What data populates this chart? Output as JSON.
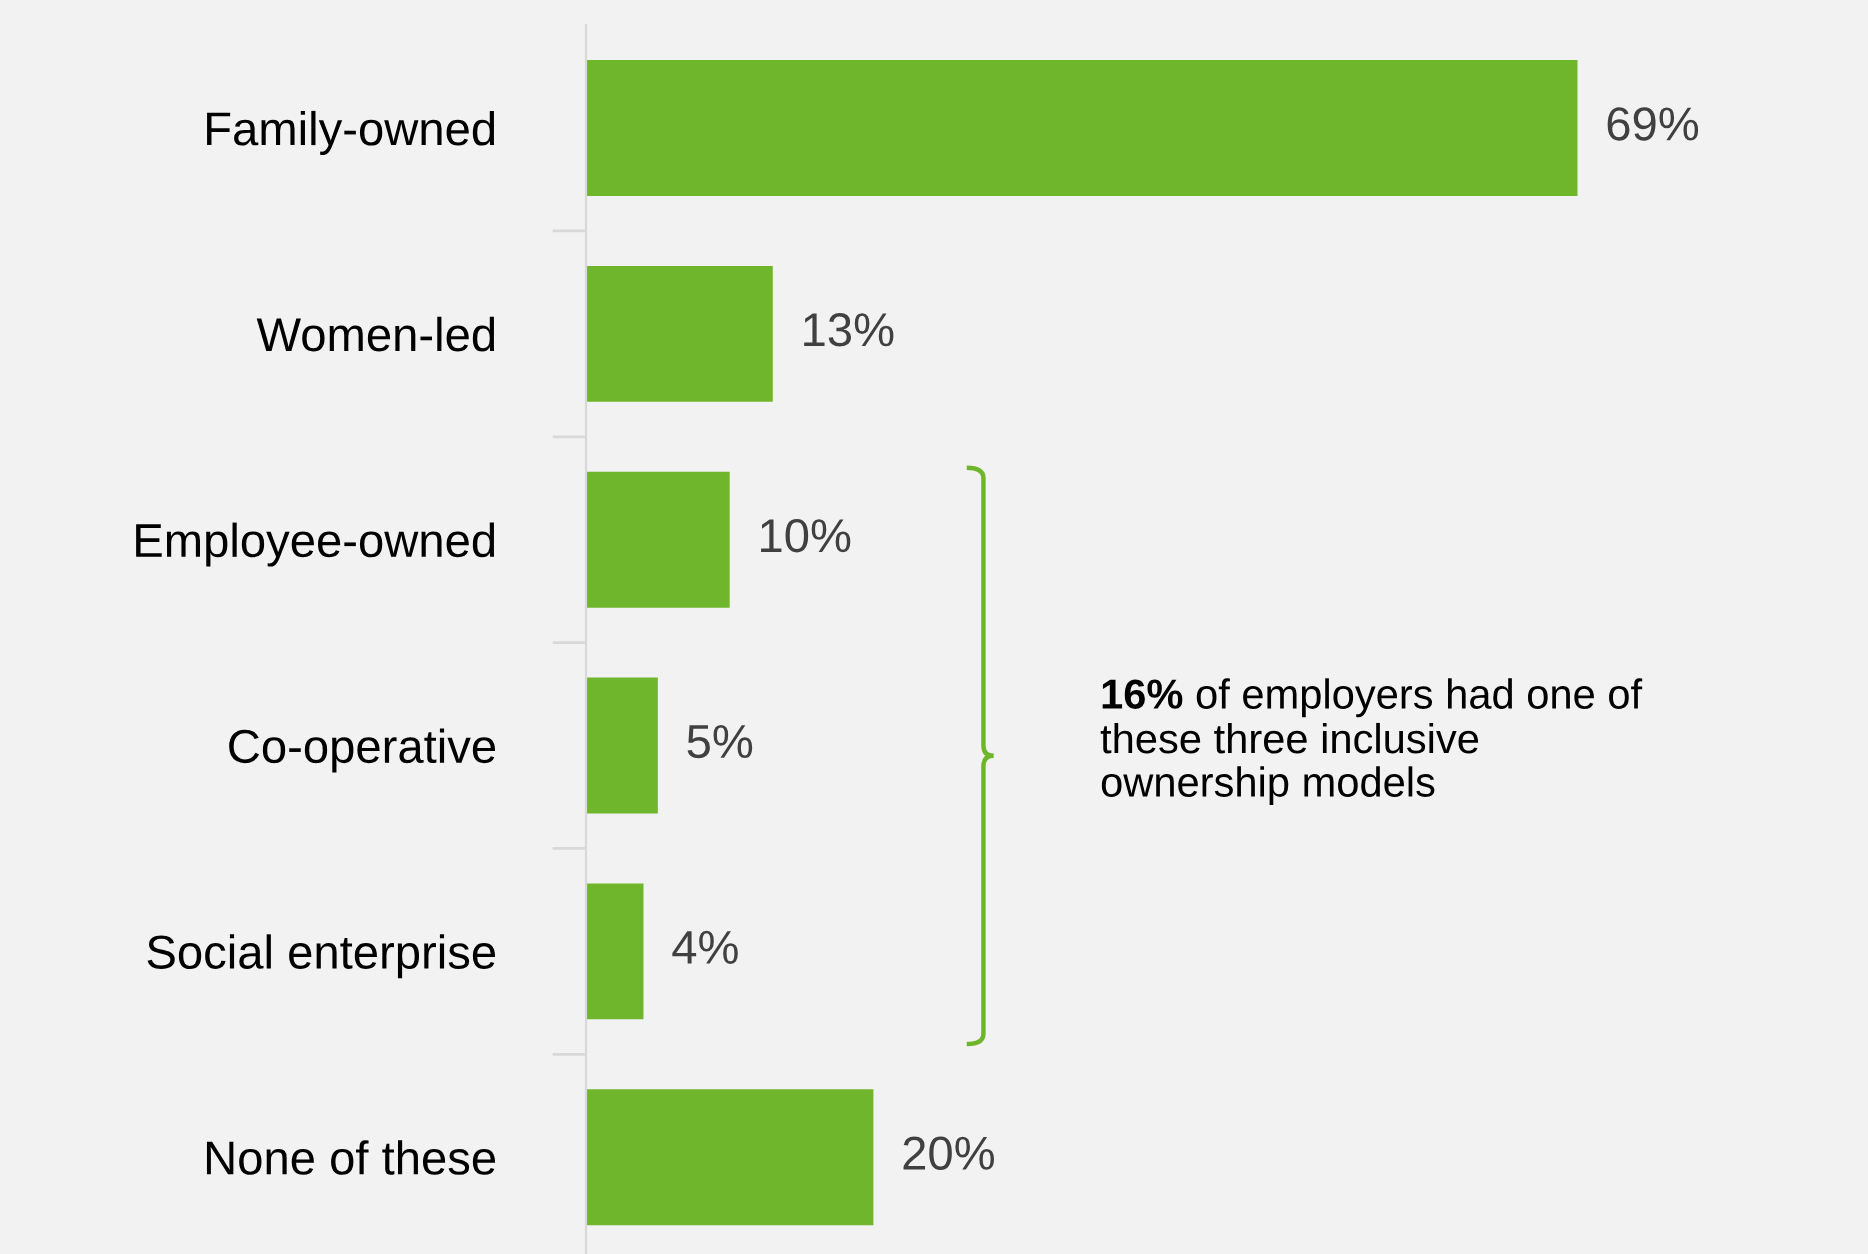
{
  "chart_data": {
    "type": "bar",
    "orientation": "horizontal",
    "categories": [
      "Family-owned",
      "Women-led",
      "Employee-owned",
      "Co-operative",
      "Social enterprise",
      "None of these"
    ],
    "values": [
      69,
      13,
      10,
      5,
      4,
      20
    ],
    "value_labels": [
      "69%",
      "13%",
      "10%",
      "5%",
      "4%",
      "20%"
    ],
    "color": "#70b62c",
    "grid": false,
    "tick_labels": "y",
    "annotations": [
      "16% of employers had one of\nthese three inclusive\nownership models"
    ]
  }
}
